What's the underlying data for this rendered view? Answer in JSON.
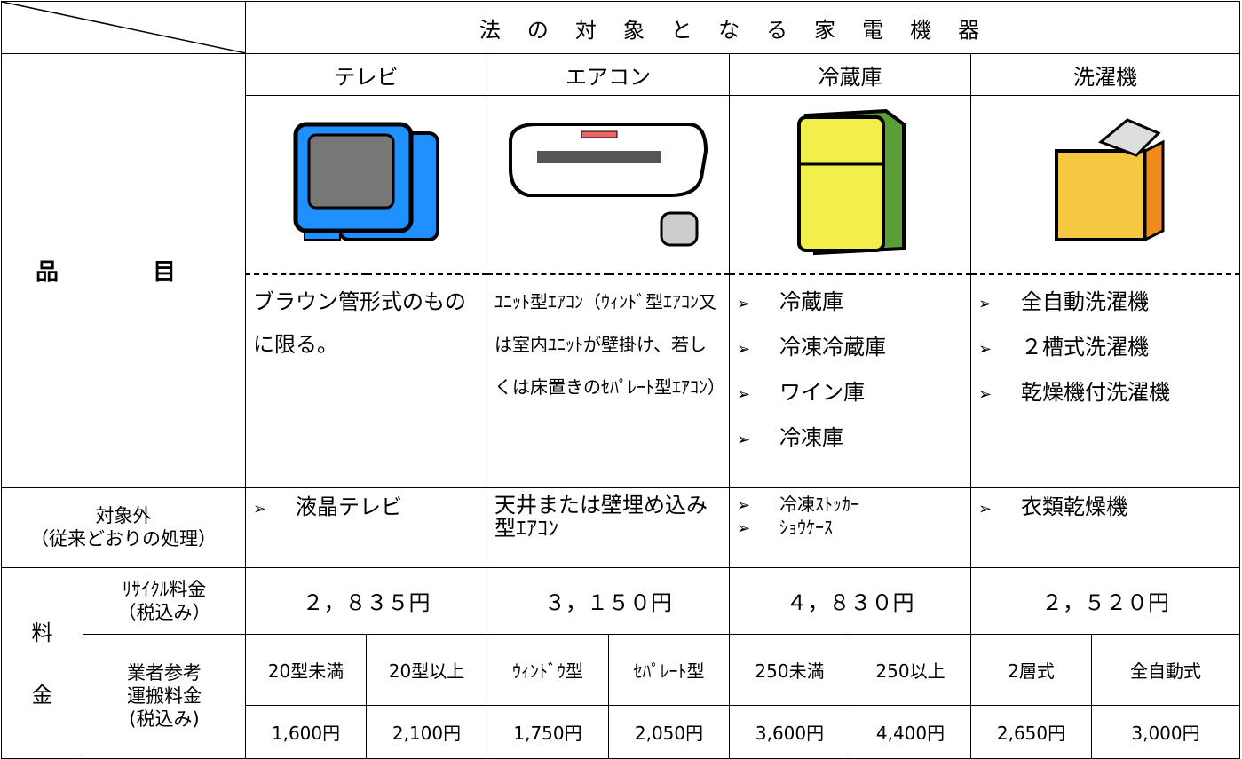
{
  "header": {
    "title": "法の対象となる家電機器"
  },
  "row_labels": {
    "item": "品　目",
    "excluded": [
      "対象外",
      "（従来どおりの処理）"
    ],
    "fee": [
      "料",
      "金"
    ],
    "recycle": [
      "ﾘｻｲｸﾙ料金",
      "（税込み）"
    ],
    "transport": [
      "業者参考",
      "運搬料金",
      "(税込み)"
    ]
  },
  "columns": [
    {
      "name": "テレビ",
      "description": "ブラウン管形式のものに限る。",
      "excluded_items": [
        "液晶テレビ"
      ],
      "recycle_fee": "２，８３５円",
      "transport": [
        {
          "size": "20型未満",
          "fee": "1,600円"
        },
        {
          "size": "20型以上",
          "fee": "2,100円"
        }
      ]
    },
    {
      "name": "エアコン",
      "description": "ﾕﾆｯﾄ型ｴｱｺﾝ（ｳｨﾝﾄﾞ型ｴｱｺﾝ又は室内ﾕﾆｯﾄが壁掛け、若しくは床置きのｾﾊﾟﾚｰﾄ型ｴｱｺﾝ）",
      "excluded": "天井または壁埋め込み型ｴｱｺﾝ",
      "recycle_fee": "３，１５０円",
      "transport": [
        {
          "size": "ｳｨﾝﾄﾞｳ型",
          "fee": "1,750円"
        },
        {
          "size": "ｾﾊﾟﾚｰﾄ型",
          "fee": "2,050円"
        }
      ]
    },
    {
      "name": "冷蔵庫",
      "description_items": [
        "冷蔵庫",
        "冷凍冷蔵庫",
        "ワイン庫",
        "冷凍庫"
      ],
      "excluded_items": [
        "冷凍ｽﾄｯｶｰ",
        "ｼｮｳｹｰｽ"
      ],
      "recycle_fee": "４，８３０円",
      "transport": [
        {
          "size": "250未満",
          "fee": "3,600円"
        },
        {
          "size": "250以上",
          "fee": "4,400円"
        }
      ]
    },
    {
      "name": "洗濯機",
      "description_items": [
        "全自動洗濯機",
        "２槽式洗濯機",
        "乾燥機付洗濯機"
      ],
      "excluded_items": [
        "衣類乾燥機"
      ],
      "recycle_fee": "２，５２０円",
      "transport": [
        {
          "size": "2層式",
          "fee": "2,650円"
        },
        {
          "size": "全自動式",
          "fee": "3,000円"
        }
      ]
    }
  ]
}
